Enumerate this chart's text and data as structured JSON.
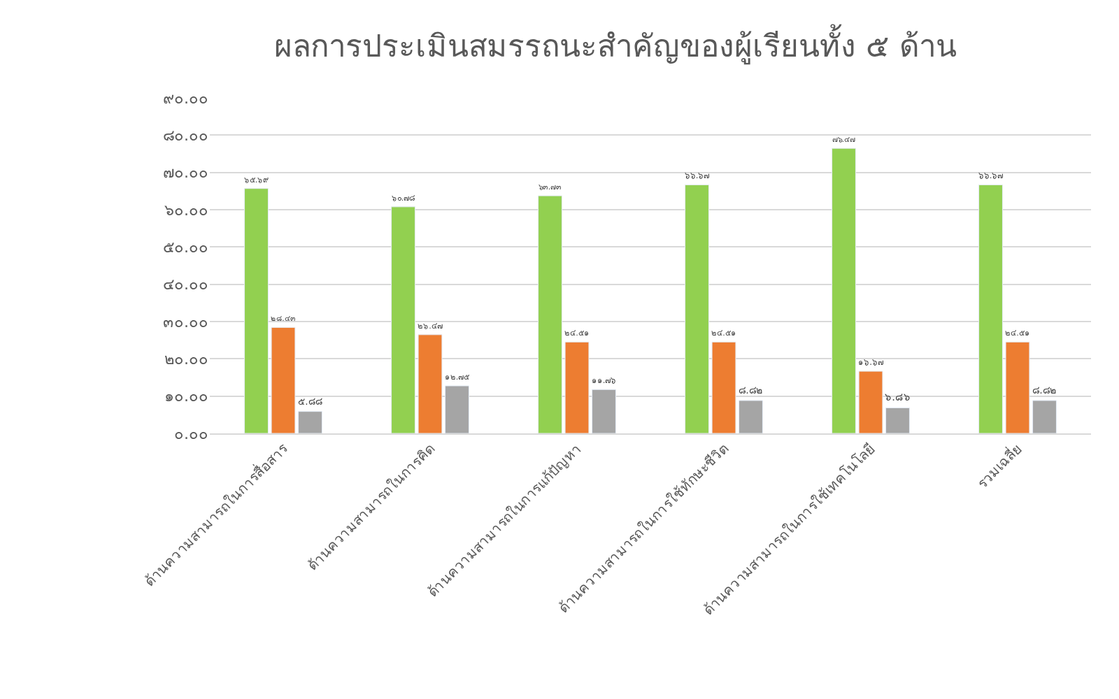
{
  "chart_data": {
    "type": "bar",
    "title": "ผลการประเมินสมรรถนะสำคัญของผู้เรียนทั้ง ๕ ด้าน",
    "categories": [
      "ด้านความสามารถในการสื่อสาร",
      "ด้านความสามารถในการคิด",
      "ด้านความสามารถในการแก้ปัญหา",
      "ด้านความสามารถในการใช้ทักษะชีวิต",
      "ด้านความสามารถในการใช้เทคโนโลยี",
      "รวมเฉลี่ย"
    ],
    "series": [
      {
        "color": "#92d050",
        "values": [
          65.69,
          60.78,
          63.73,
          66.67,
          76.47,
          66.67
        ],
        "value_labels": [
          "๖๕.๖๙",
          "๖๐.๗๘",
          "๖๓.๗๓",
          "๖๖.๖๗",
          "๗๖.๔๗",
          "๖๖.๖๗"
        ]
      },
      {
        "color": "#ed7d31",
        "values": [
          28.43,
          26.47,
          24.51,
          24.51,
          16.67,
          24.51
        ],
        "value_labels": [
          "๒๘.๔๓",
          "๒๖.๔๗",
          "๒๔.๕๑",
          "๒๔.๕๑",
          "๑๖.๖๗",
          "๒๔.๕๑"
        ]
      },
      {
        "color": "#a5a5a5",
        "values": [
          5.88,
          12.75,
          11.76,
          8.82,
          6.86,
          8.82
        ],
        "value_labels": [
          "๕.๘๘",
          "๑๒.๗๕",
          "๑๑.๗๖",
          "๘.๘๒",
          "๖.๘๖",
          "๘.๘๒"
        ]
      }
    ],
    "ylim": [
      0,
      90
    ],
    "yticks": [
      {
        "value": 0,
        "label": "๐.๐๐"
      },
      {
        "value": 10,
        "label": "๑๐.๐๐"
      },
      {
        "value": 20,
        "label": "๒๐.๐๐"
      },
      {
        "value": 30,
        "label": "๓๐.๐๐"
      },
      {
        "value": 40,
        "label": "๔๐.๐๐"
      },
      {
        "value": 50,
        "label": "๕๐.๐๐"
      },
      {
        "value": 60,
        "label": "๖๐.๐๐"
      },
      {
        "value": 70,
        "label": "๗๐.๐๐"
      },
      {
        "value": 80,
        "label": "๘๐.๐๐"
      },
      {
        "value": 90,
        "label": "๙๐.๐๐"
      }
    ],
    "grid": "y"
  }
}
